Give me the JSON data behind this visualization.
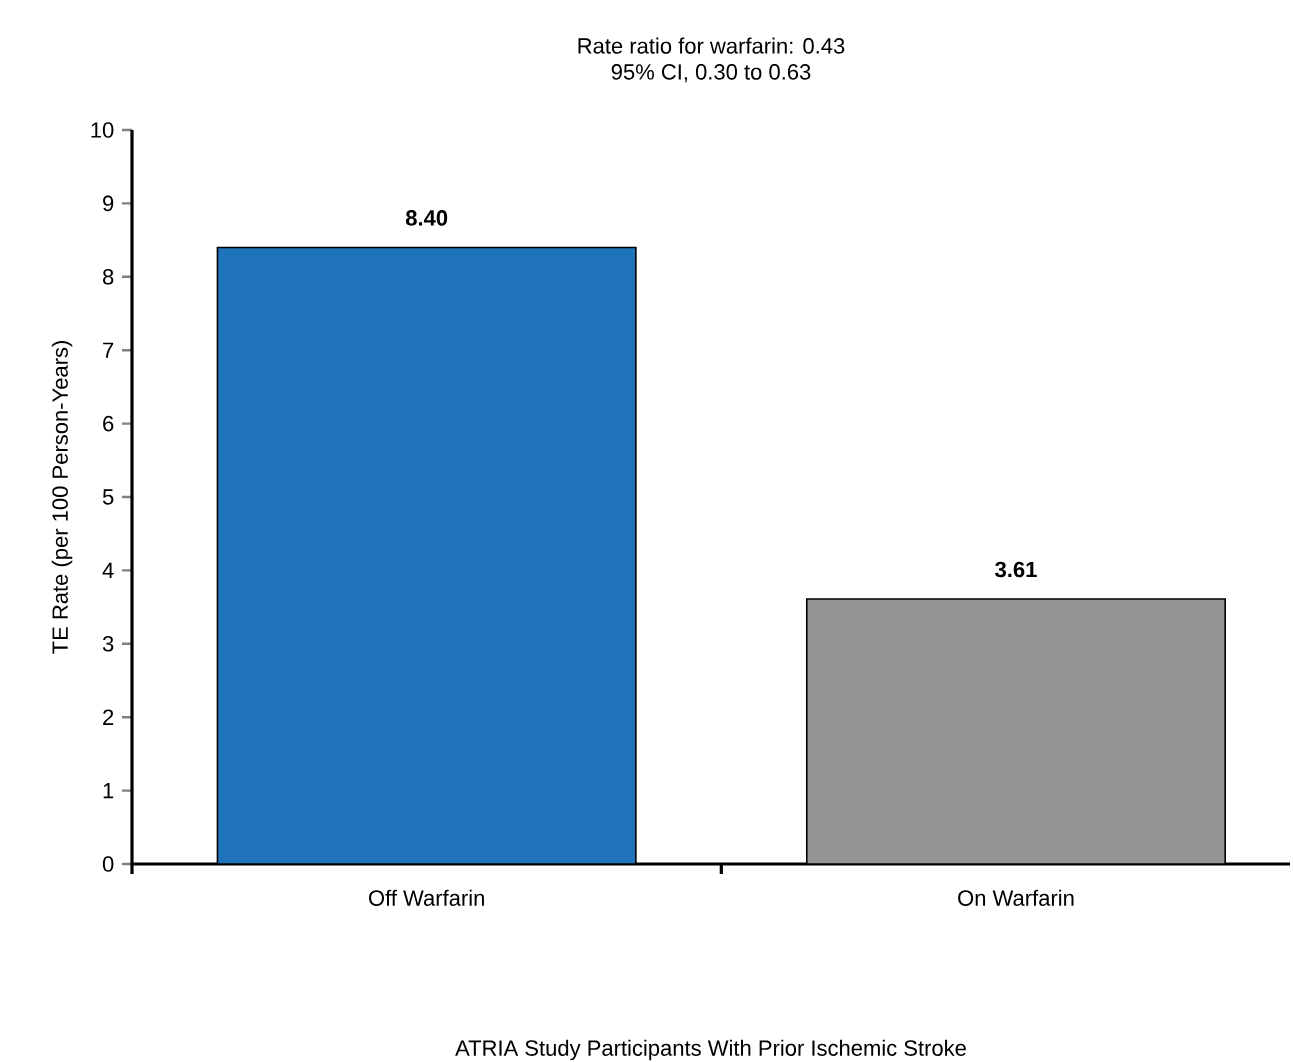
{
  "chart_data": {
    "type": "bar",
    "title": "Rate ratio for warfarin: 0.43",
    "subtitle": "95% CI, 0.30 to 0.63",
    "annotations": [
      "ATRIA Study Participants With Prior Ischemic Stroke"
    ],
    "ylabel": "TE Rate (per 100 Person-Years)",
    "categories": [
      "Off Warfarin",
      "On Warfarin"
    ],
    "values": [
      8.4,
      3.61
    ],
    "colors": [
      "#1f73bb",
      "#959597"
    ],
    "value_labels": [
      "8.40",
      "3.61"
    ],
    "ylim": [
      0,
      10
    ],
    "yticks": [
      0,
      1,
      2,
      3,
      4,
      5,
      6,
      7,
      8,
      9,
      10
    ],
    "grid": false
  }
}
